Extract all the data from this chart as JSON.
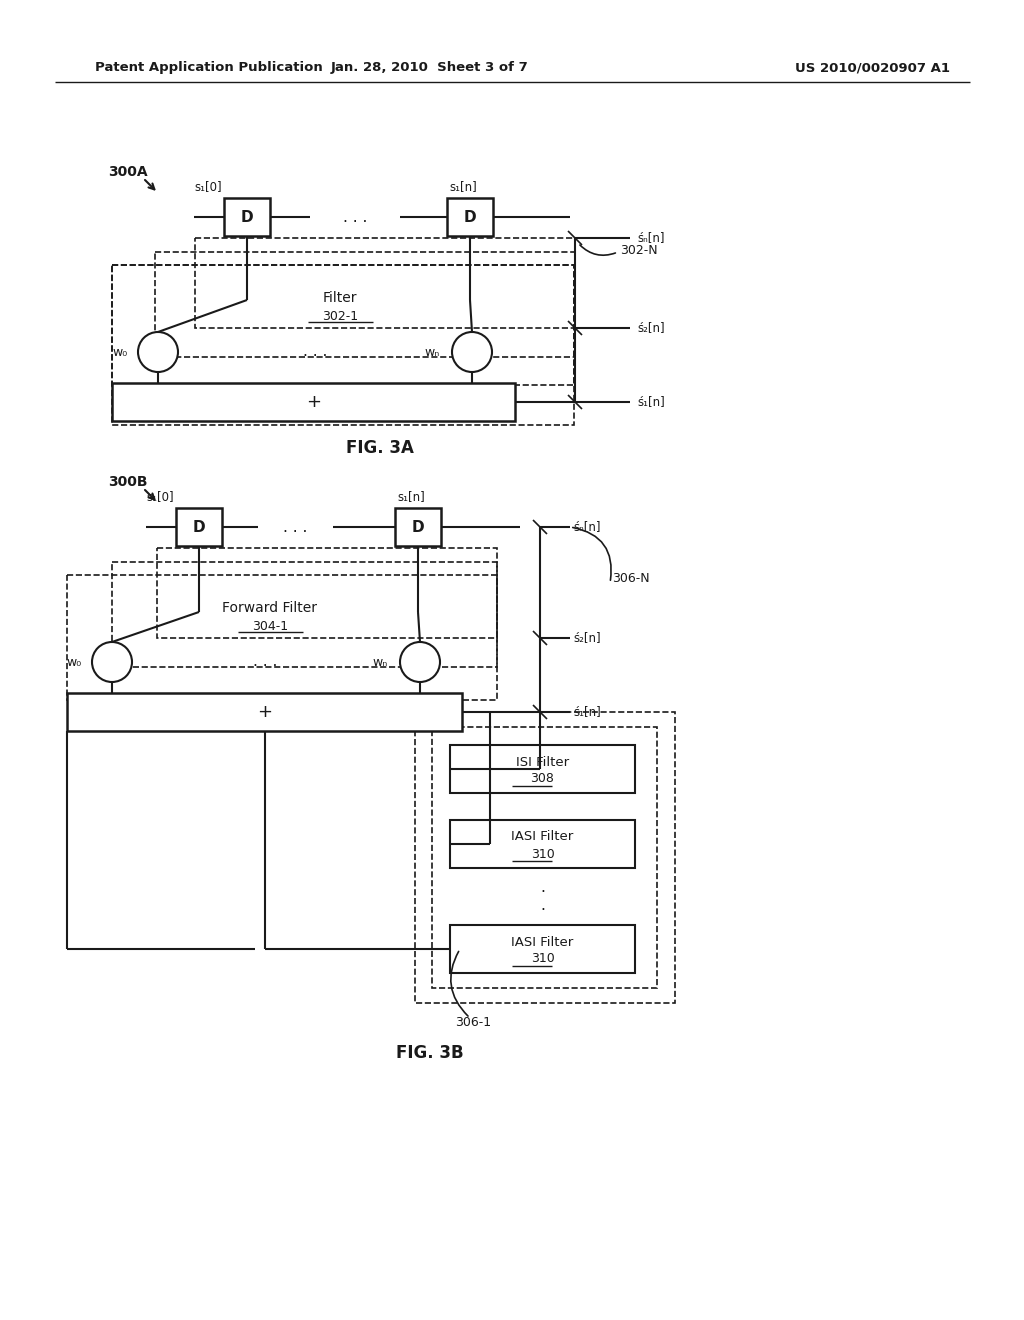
{
  "bg_color": "#ffffff",
  "text_color": "#1a1a1a",
  "line_color": "#1a1a1a",
  "header_left": "Patent Application Publication",
  "header_mid": "Jan. 28, 2010  Sheet 3 of 7",
  "header_right": "US 2010/0020907 A1",
  "fig3a_label": "FIG. 3A",
  "fig3b_label": "FIG. 3B",
  "label_300A": "300A",
  "label_300B": "300B",
  "label_302N": "302-N",
  "label_302_1": "302-1",
  "label_304_1": "304-1",
  "label_306N": "306-N",
  "label_306_1": "306-1",
  "label_308": "308",
  "label_310a": "310",
  "label_310b": "310",
  "text_filter": "Filter",
  "text_forward_filter": "Forward Filter",
  "text_isi_filter": "ISI Filter",
  "text_iasi_filter": "IASI Filter",
  "text_w0": "w₀",
  "text_wn": "wₙ",
  "text_plus": "+",
  "text_dots_h": ". . .",
  "s1_0": "s₁[0]",
  "s1_n": "s₁[n]",
  "sN_hat": "śₙ[n]",
  "s2_hat": "ś₂[n]",
  "s1_hat": "ś₁[n]"
}
